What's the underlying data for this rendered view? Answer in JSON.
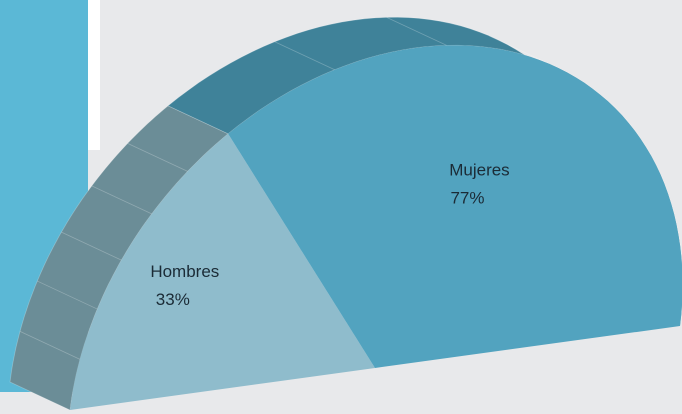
{
  "chart_data": {
    "type": "pie",
    "categories": [
      "Hombres",
      "Mujeres"
    ],
    "values": [
      33,
      77
    ],
    "value_labels": [
      "33%",
      "77%"
    ],
    "colors": [
      "#8fbccc",
      "#52a3bf"
    ],
    "side_colors": [
      "#6b8d97",
      "#3f8299"
    ]
  }
}
